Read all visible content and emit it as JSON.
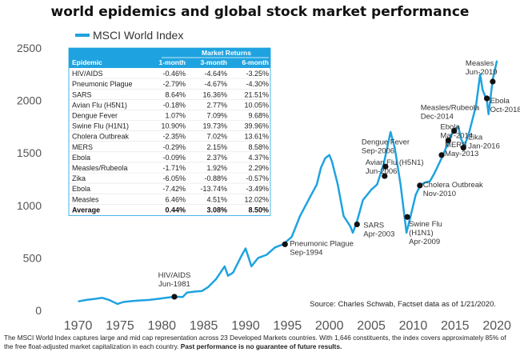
{
  "chart_data": {
    "type": "line",
    "title": "world epidemics and global stock market performance",
    "series": [
      {
        "name": "MSCI World Index",
        "color": "#1fa3e0"
      }
    ],
    "x": [
      1970.0,
      1971.0,
      1972.0,
      1972.9,
      1973.7,
      1974.7,
      1975.4,
      1976.5,
      1977.5,
      1978.5,
      1979.5,
      1980.5,
      1981.5,
      1982.5,
      1983.0,
      1984.0,
      1984.8,
      1985.5,
      1986.5,
      1987.5,
      1987.9,
      1988.5,
      1989.5,
      1990.0,
      1990.7,
      1991.5,
      1992.5,
      1993.5,
      1994.5,
      1995.5,
      1996.5,
      1997.5,
      1998.5,
      1999.0,
      1999.5,
      2000.0,
      2000.3,
      2001.0,
      2001.7,
      2002.5,
      2002.8,
      2003.3,
      2004.0,
      2005.0,
      2005.7,
      2006.5,
      2007.3,
      2007.8,
      2008.5,
      2009.2,
      2009.7,
      2010.3,
      2010.9,
      2011.5,
      2012.0,
      2012.5,
      2013.4,
      2014.2,
      2014.8,
      2015.4,
      2015.7,
      2016.1,
      2016.7,
      2017.5,
      2018.0,
      2018.3,
      2018.8,
      2019.0,
      2019.5,
      2020.0
    ],
    "values": [
      85,
      100,
      110,
      120,
      100,
      62,
      80,
      90,
      95,
      100,
      110,
      120,
      130,
      128,
      170,
      180,
      185,
      220,
      300,
      420,
      330,
      360,
      520,
      590,
      420,
      500,
      530,
      600,
      630,
      700,
      900,
      1050,
      1200,
      1360,
      1450,
      1480,
      1420,
      1200,
      900,
      800,
      740,
      850,
      1050,
      1150,
      1200,
      1400,
      1700,
      1550,
      1200,
      740,
      900,
      1100,
      1200,
      1220,
      1230,
      1300,
      1450,
      1600,
      1720,
      1750,
      1640,
      1560,
      1700,
      1950,
      2250,
      2100,
      2000,
      1870,
      2200,
      2380
    ],
    "xlim": [
      1968.8,
      2021.8
    ],
    "ylim": [
      0,
      2500
    ],
    "xticks": [
      "1970",
      "1975",
      "1980",
      "1985",
      "1990",
      "1995",
      "2000",
      "2005",
      "2010",
      "2015",
      "2020"
    ],
    "yticks": [
      "0",
      "500",
      "1000",
      "1500",
      "2000",
      "2500"
    ],
    "events": [
      {
        "x": 1981.5,
        "y": 130,
        "lines": [
          "HIV/AIDS",
          "Jun-1981"
        ]
      },
      {
        "x": 1994.7,
        "y": 630,
        "lines": [
          "Pneumonic Plague",
          "Sep-1994"
        ]
      },
      {
        "x": 2003.3,
        "y": 820,
        "lines": [
          "SARS",
          "Apr-2003"
        ]
      },
      {
        "x": 2006.6,
        "y": 1280,
        "lines": [
          "Avian Flu (H5N1)",
          "Jun-2006"
        ]
      },
      {
        "x": 2006.7,
        "y": 1370,
        "lines": [
          "Dengue Fever",
          "Sep-2006"
        ]
      },
      {
        "x": 2009.3,
        "y": 890,
        "lines": [
          "Swine Flu",
          "(H1N1)",
          "Apr-2009"
        ]
      },
      {
        "x": 2010.8,
        "y": 1190,
        "lines": [
          "Cholera Outbreak",
          "Nov-2010"
        ]
      },
      {
        "x": 2013.4,
        "y": 1480,
        "lines": [
          "MERS",
          "May-2013"
        ]
      },
      {
        "x": 2014.2,
        "y": 1620,
        "lines": [
          "Ebola",
          "Mar-2014"
        ]
      },
      {
        "x": 2014.9,
        "y": 1710,
        "lines": [
          "Measles/Rubeola",
          "Dec-2014"
        ]
      },
      {
        "x": 2016.0,
        "y": 1550,
        "lines": [
          "Zika",
          "Jan-2016"
        ]
      },
      {
        "x": 2018.8,
        "y": 2020,
        "lines": [
          "Ebola",
          "Oct-2018"
        ]
      },
      {
        "x": 2019.5,
        "y": 2180,
        "lines": [
          "Measles",
          "Jun-2019"
        ]
      }
    ],
    "source": "Source: Charles Schwab, Factset data as of 1/21/2020."
  },
  "table": {
    "group_header": "Market Returns",
    "headers": [
      "Epidemic",
      "1-month",
      "3-month",
      "6-month"
    ],
    "rows": [
      [
        "HIV/AIDS",
        "-0.46%",
        "-4.64%",
        "-3.25%"
      ],
      [
        "Pneumonic Plague",
        "-2.79%",
        "-4.67%",
        "-4.30%"
      ],
      [
        "SARS",
        "8.64%",
        "16.36%",
        "21.51%"
      ],
      [
        "Avian Flu (H5N1)",
        "-0.18%",
        "2.77%",
        "10.05%"
      ],
      [
        "Dengue Fever",
        "1.07%",
        "7.09%",
        "9.68%"
      ],
      [
        "Swine Flu (H1N1)",
        "10.90%",
        "19.73%",
        "39.96%"
      ],
      [
        "Cholera Outbreak",
        "-2.35%",
        "7.02%",
        "13.61%"
      ],
      [
        "MERS",
        "-0.29%",
        "2.15%",
        "8.58%"
      ],
      [
        "Ebola",
        "-0.09%",
        "2.37%",
        "4.37%"
      ],
      [
        "Measles/Rubeola",
        "-1.71%",
        "1.92%",
        "2.29%"
      ],
      [
        "Zika",
        "-6.05%",
        "-0.88%",
        "-0.57%"
      ],
      [
        "Ebola",
        "-7.42%",
        "-13.74%",
        "-3.49%"
      ],
      [
        "Measles",
        "6.46%",
        "4.51%",
        "12.02%"
      ]
    ],
    "total": [
      "Average",
      "0.44%",
      "3.08%",
      "8.50%"
    ],
    "header_color": "#1fa3e0"
  },
  "footnote": {
    "text": "The MSCI World Index captures large and mid cap representation across 23 Developed Markets countries. With 1,646 constituents, the index covers approximately 85% of the free float-adjusted market capitalization in each country.",
    "emphasis": "Past performance is no guarantee of future results."
  }
}
